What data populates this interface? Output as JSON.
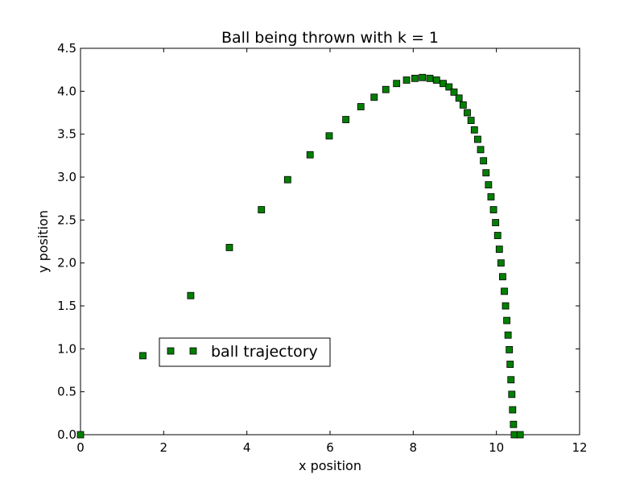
{
  "chart_data": {
    "type": "scatter",
    "title": "Ball being thrown with k = 1",
    "xlabel": "x position",
    "ylabel": "y position",
    "xlim": [
      0,
      12
    ],
    "ylim": [
      0,
      4.5
    ],
    "xticks": [
      "0",
      "2",
      "4",
      "6",
      "8",
      "10",
      "12"
    ],
    "yticks": [
      "0.0",
      "0.5",
      "1.0",
      "1.5",
      "2.0",
      "2.5",
      "3.0",
      "3.5",
      "4.0",
      "4.5"
    ],
    "grid": false,
    "legend_position": "lower-left",
    "marker": "square",
    "series": [
      {
        "name": "ball trajectory",
        "color": "#008000",
        "x": [
          0.0,
          1.5,
          2.65,
          3.58,
          4.35,
          4.98,
          5.52,
          5.98,
          6.38,
          6.74,
          7.06,
          7.34,
          7.6,
          7.84,
          8.04,
          8.22,
          8.4,
          8.56,
          8.72,
          8.86,
          8.98,
          9.1,
          9.2,
          9.3,
          9.39,
          9.47,
          9.55,
          9.62,
          9.69,
          9.75,
          9.81,
          9.87,
          9.93,
          9.98,
          10.03,
          10.07,
          10.11,
          10.15,
          10.19,
          10.22,
          10.25,
          10.28,
          10.31,
          10.33,
          10.35,
          10.37,
          10.39,
          10.41,
          10.43,
          10.57
        ],
        "y": [
          0.0,
          0.92,
          1.62,
          2.18,
          2.62,
          2.97,
          3.26,
          3.48,
          3.67,
          3.82,
          3.93,
          4.02,
          4.09,
          4.13,
          4.15,
          4.16,
          4.15,
          4.13,
          4.09,
          4.05,
          3.99,
          3.92,
          3.84,
          3.75,
          3.66,
          3.55,
          3.44,
          3.32,
          3.19,
          3.05,
          2.91,
          2.77,
          2.62,
          2.47,
          2.32,
          2.16,
          2.0,
          1.84,
          1.67,
          1.5,
          1.33,
          1.16,
          0.99,
          0.82,
          0.64,
          0.47,
          0.29,
          0.12,
          0.0,
          0.0
        ]
      }
    ]
  }
}
